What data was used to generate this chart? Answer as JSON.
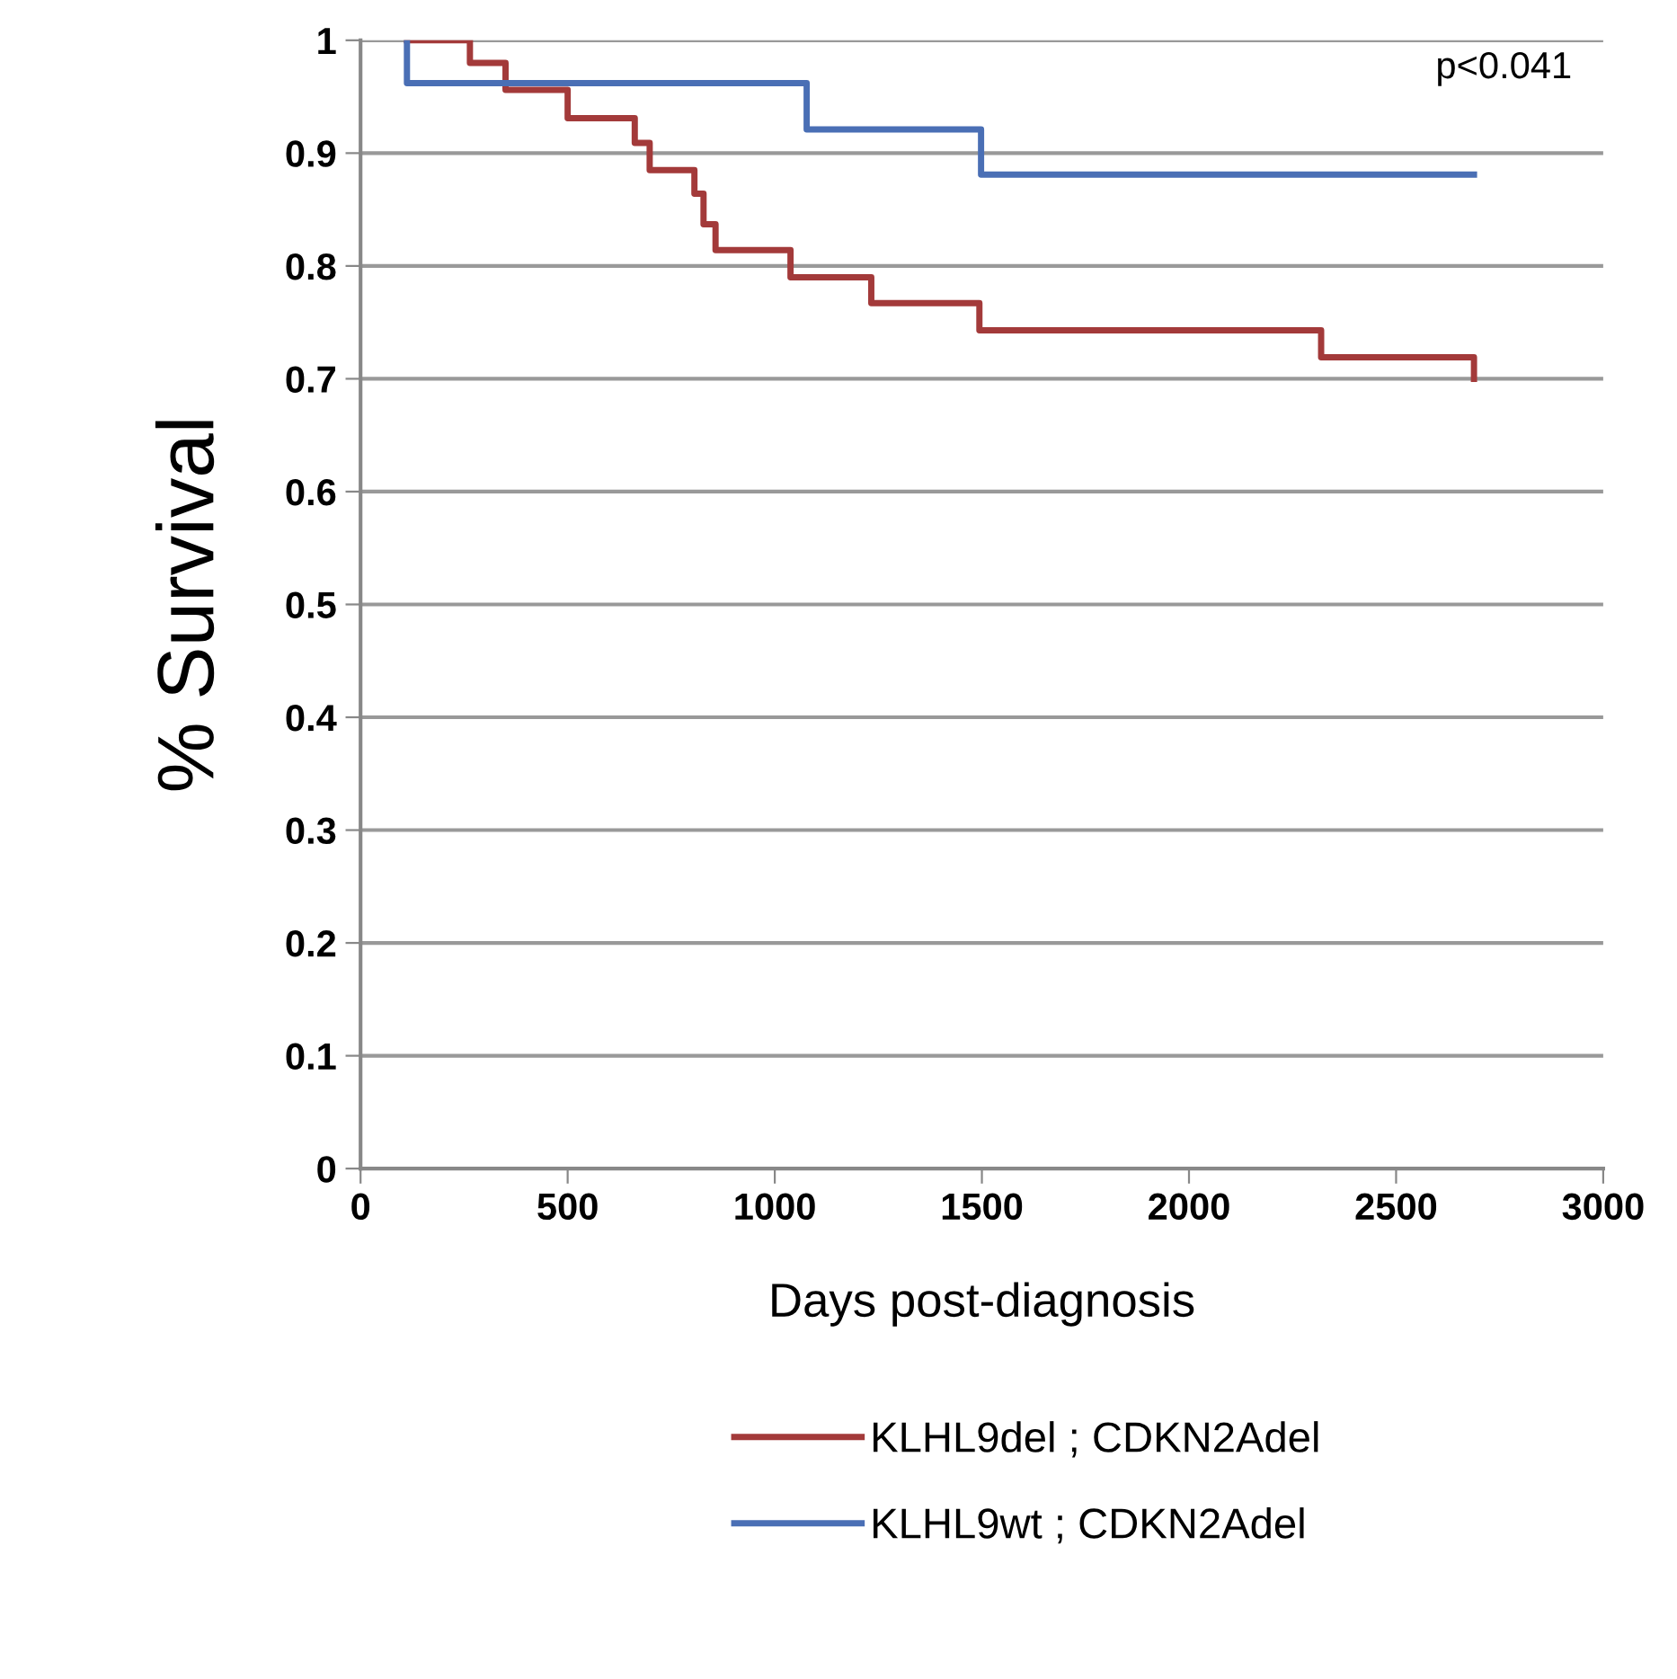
{
  "chart_data": {
    "type": "step",
    "xlabel": "Days post-diagnosis",
    "ylabel": "% Survival",
    "xlim": [
      0,
      3000
    ],
    "xticks": [
      0,
      500,
      1000,
      1500,
      2000,
      2500,
      3000
    ],
    "ylim": [
      0,
      1
    ],
    "yticks": [
      0,
      0.1,
      0.2,
      0.3,
      0.4,
      0.5,
      0.6,
      0.7,
      0.8,
      0.9,
      1
    ],
    "grid": "y",
    "legend": "bottom",
    "annotations": [
      "p<0.041"
    ],
    "series": [
      {
        "name": "KLHL9del ; CDKN2Adel",
        "color": "#a33a3a",
        "x": [
          112,
          264,
          350,
          500,
          662,
          698,
          806,
          828,
          857,
          1038,
          1233,
          1494,
          2319,
          2688,
          2688
        ],
        "values": [
          1,
          0.98,
          0.956,
          0.931,
          0.909,
          0.885,
          0.864,
          0.837,
          0.814,
          0.79,
          0.767,
          0.743,
          0.719,
          0.719,
          0.7
        ]
      },
      {
        "name": "KLHL9wt ; CDKN2Adel",
        "color": "#4a6fb5",
        "x": [
          112,
          112,
          1077,
          1498,
          2688
        ],
        "values": [
          1,
          0.962,
          0.921,
          0.881,
          0.881
        ]
      }
    ]
  }
}
